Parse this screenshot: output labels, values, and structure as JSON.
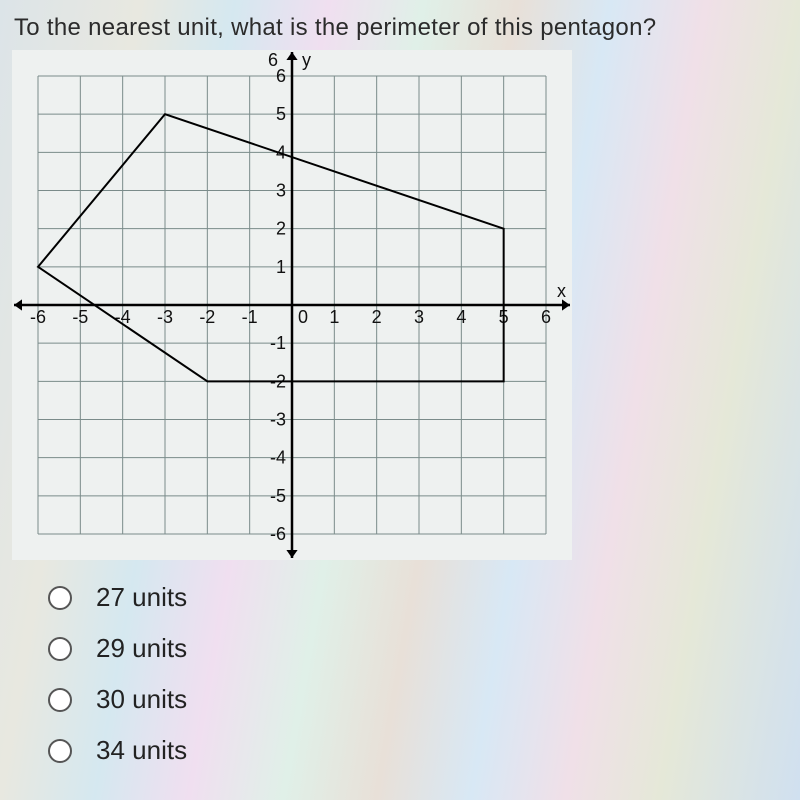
{
  "question": "To the nearest unit, what is the perimeter of this pentagon?",
  "graph": {
    "type": "coordinate-grid-with-polygon",
    "xmin": -6,
    "xmax": 6,
    "ymin": -6,
    "ymax": 6,
    "x_ticks": [
      -6,
      -5,
      -4,
      -3,
      -2,
      -1,
      0,
      1,
      2,
      3,
      4,
      5,
      6
    ],
    "y_ticks": [
      -6,
      -5,
      -4,
      -3,
      -2,
      -1,
      1,
      2,
      3,
      4,
      5,
      6
    ],
    "x_axis_label": "x",
    "y_axis_label": "y",
    "grid_color": "#7a8b8a",
    "axis_color": "#000000",
    "polygon_color": "#000000",
    "polygon_line_width": 2,
    "axis_line_width": 2.5,
    "grid_line_width": 1,
    "arrow_size": 8,
    "background_color": "#eef1f0",
    "pentagon_vertices": [
      [
        -6,
        1
      ],
      [
        -3,
        5
      ],
      [
        5,
        2
      ],
      [
        5,
        -2
      ],
      [
        -2,
        -2
      ]
    ]
  },
  "options": [
    {
      "label": "27 units"
    },
    {
      "label": "29 units"
    },
    {
      "label": "30 units"
    },
    {
      "label": "34 units"
    }
  ]
}
